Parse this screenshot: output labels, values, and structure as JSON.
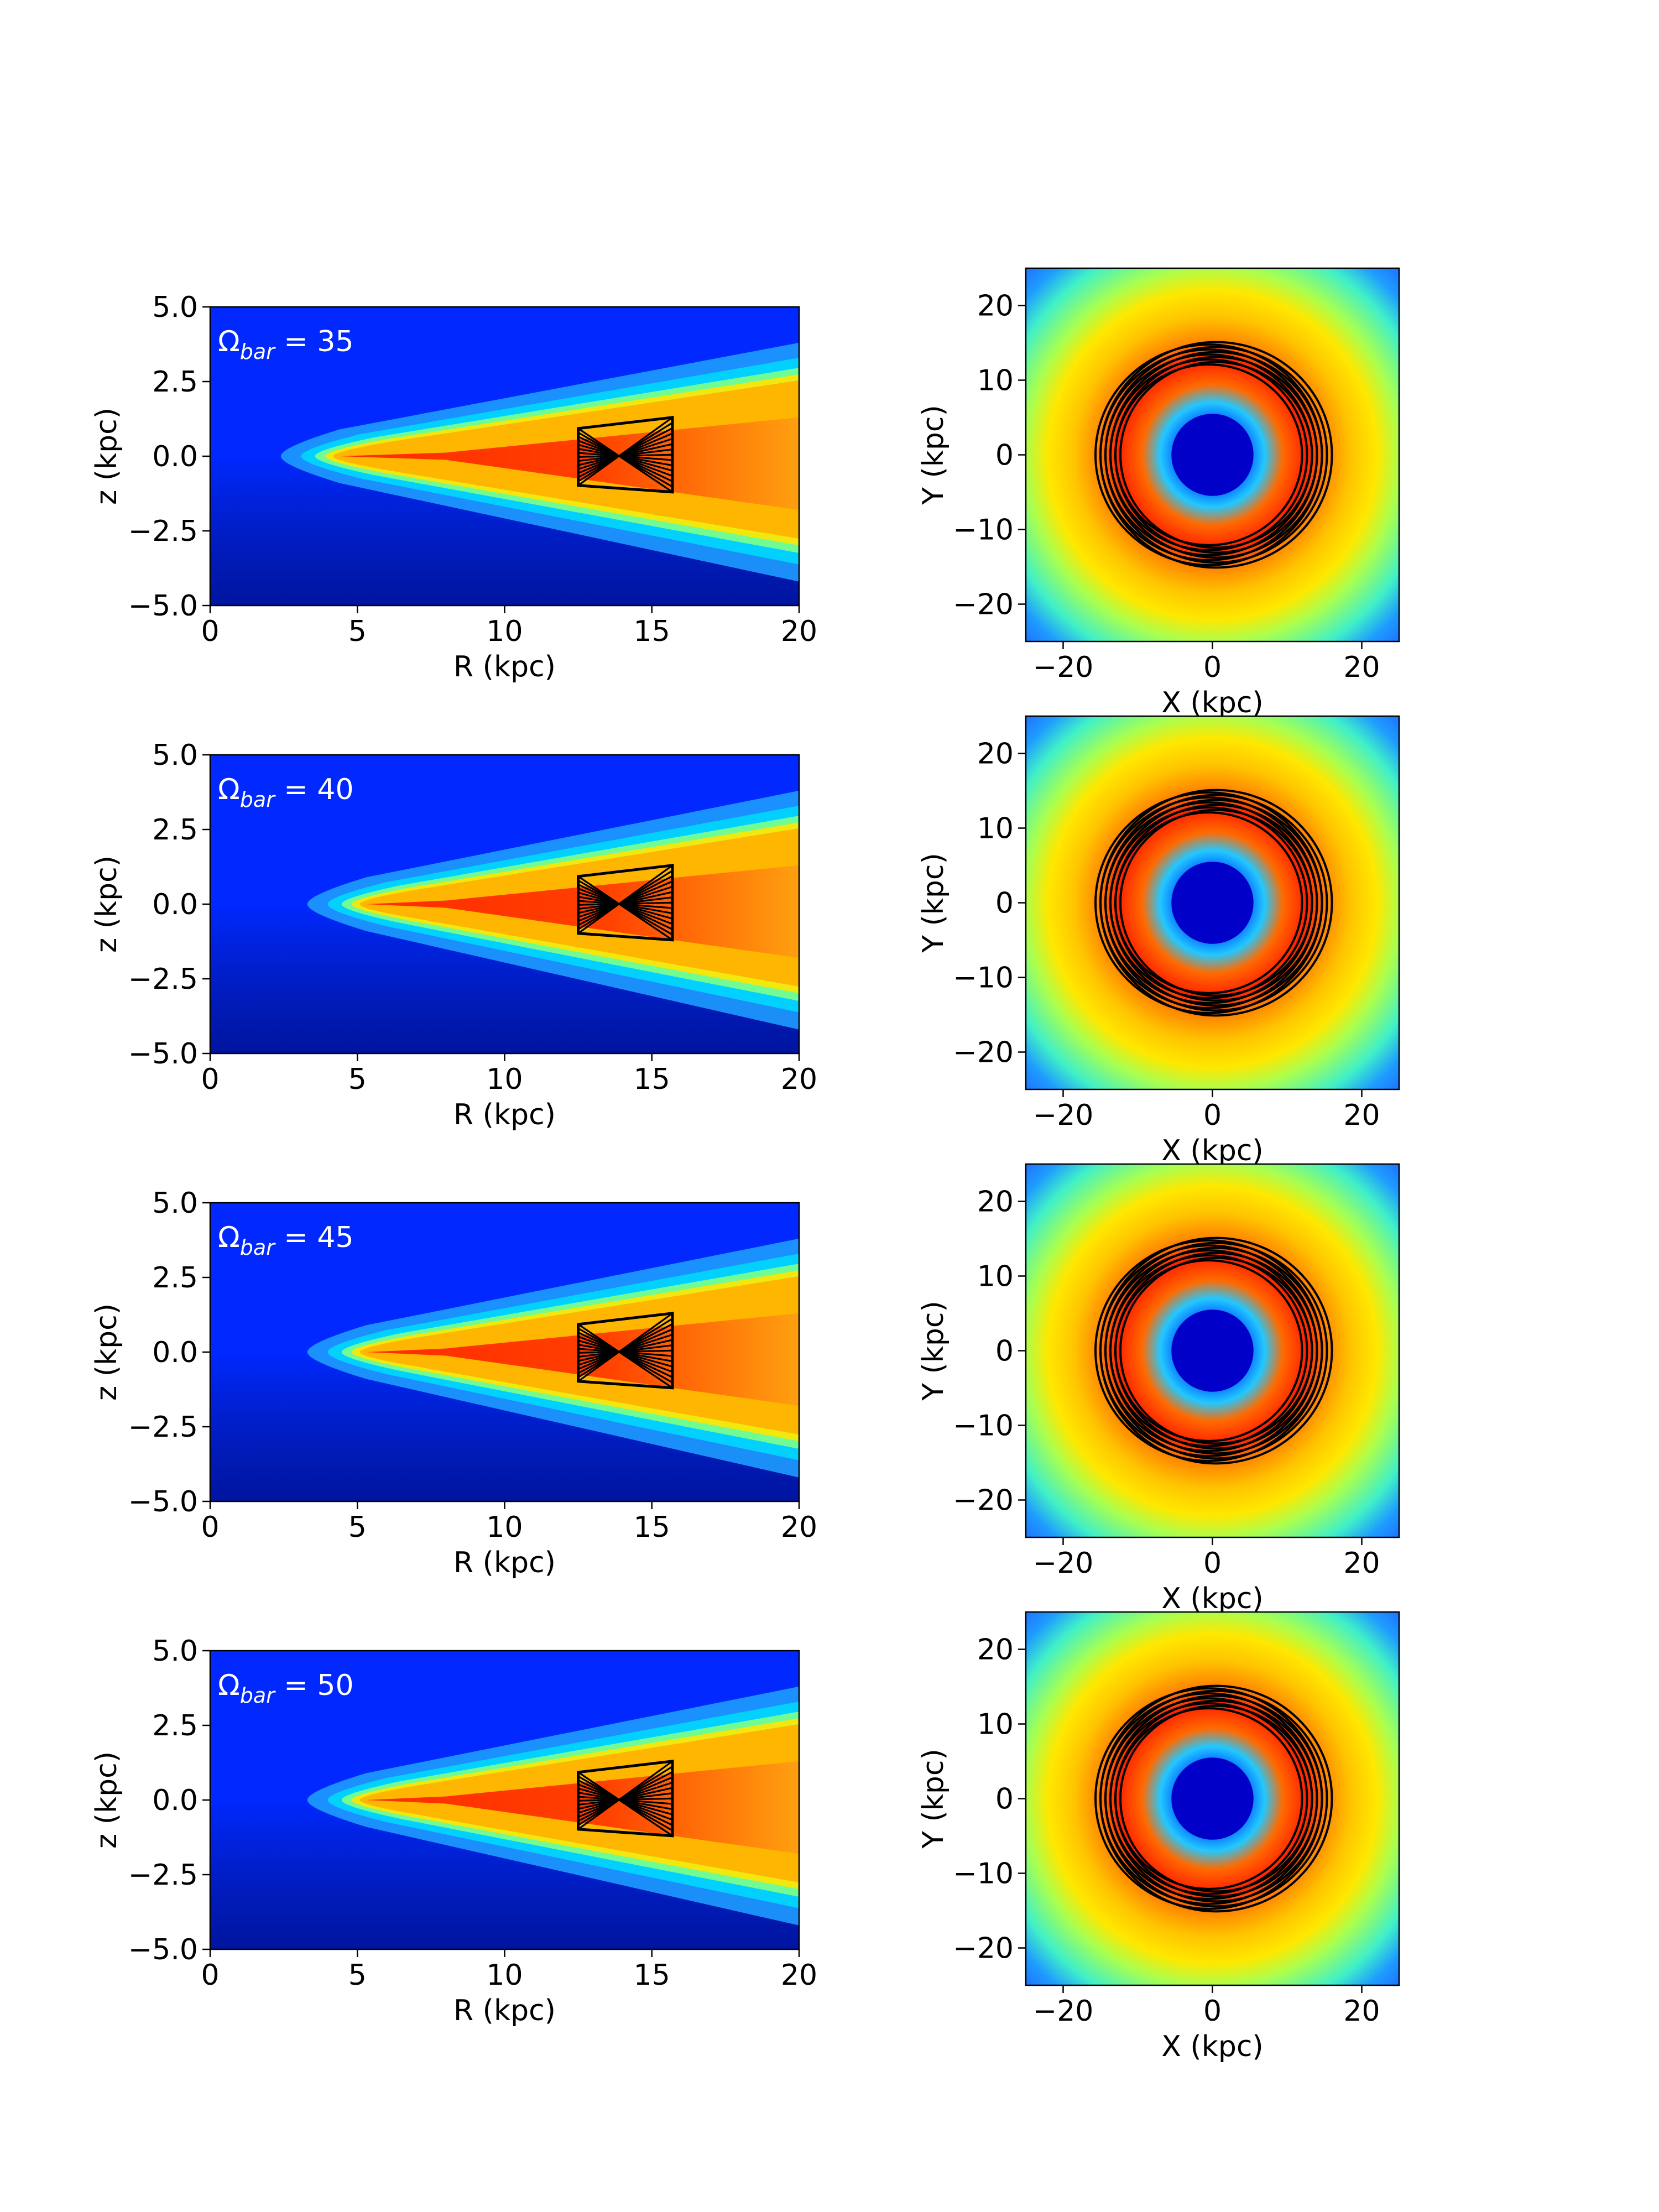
{
  "chart_data": [
    {
      "type": "heatmap",
      "panel": "left-1",
      "annotation": "35",
      "xlabel": "R (kpc)",
      "ylabel": "z (kpc)",
      "xlim": [
        0,
        20
      ],
      "ylim": [
        -5.0,
        5.0
      ],
      "xticks": [
        "0",
        "5",
        "10",
        "15",
        "20"
      ],
      "yticks": [
        "5.0",
        "2.5",
        "0.0",
        "−2.5",
        "−5.0"
      ],
      "orbit_box": {
        "r_range": [
          12.5,
          15.7
        ],
        "z_range": [
          -1.2,
          1.3
        ]
      }
    },
    {
      "type": "heatmap",
      "panel": "right-1",
      "xlabel": "X (kpc)",
      "ylabel": "Y (kpc)",
      "xlim": [
        -25,
        25
      ],
      "ylim": [
        -25,
        25
      ],
      "xticks": [
        "−20",
        "0",
        "20"
      ],
      "yticks": [
        "20",
        "10",
        "0",
        "−10",
        "−20"
      ],
      "orbit_ring": {
        "inner_radius": 12.5,
        "outer_radius": 15.5
      }
    },
    {
      "type": "heatmap",
      "panel": "left-2",
      "annotation": "40",
      "xlabel": "R (kpc)",
      "ylabel": "z (kpc)",
      "xlim": [
        0,
        20
      ],
      "ylim": [
        -5.0,
        5.0
      ],
      "xticks": [
        "0",
        "5",
        "10",
        "15",
        "20"
      ],
      "yticks": [
        "5.0",
        "2.5",
        "0.0",
        "−2.5",
        "−5.0"
      ],
      "orbit_box": {
        "r_range": [
          12.5,
          15.7
        ],
        "z_range": [
          -1.2,
          1.3
        ]
      }
    },
    {
      "type": "heatmap",
      "panel": "right-2",
      "xlabel": "X (kpc)",
      "ylabel": "Y (kpc)",
      "xlim": [
        -25,
        25
      ],
      "ylim": [
        -25,
        25
      ],
      "xticks": [
        "−20",
        "0",
        "20"
      ],
      "yticks": [
        "20",
        "10",
        "0",
        "−10",
        "−20"
      ],
      "orbit_ring": {
        "inner_radius": 12.5,
        "outer_radius": 15.5
      }
    },
    {
      "type": "heatmap",
      "panel": "left-3",
      "annotation": "45",
      "xlabel": "R (kpc)",
      "ylabel": "z (kpc)",
      "xlim": [
        0,
        20
      ],
      "ylim": [
        -5.0,
        5.0
      ],
      "xticks": [
        "0",
        "5",
        "10",
        "15",
        "20"
      ],
      "yticks": [
        "5.0",
        "2.5",
        "0.0",
        "−2.5",
        "−5.0"
      ],
      "orbit_box": {
        "r_range": [
          12.5,
          15.7
        ],
        "z_range": [
          -1.2,
          1.3
        ]
      }
    },
    {
      "type": "heatmap",
      "panel": "right-3",
      "xlabel": "X (kpc)",
      "ylabel": "Y (kpc)",
      "xlim": [
        -25,
        25
      ],
      "ylim": [
        -25,
        25
      ],
      "xticks": [
        "−20",
        "0",
        "20"
      ],
      "yticks": [
        "20",
        "10",
        "0",
        "−10",
        "−20"
      ],
      "orbit_ring": {
        "inner_radius": 12.5,
        "outer_radius": 15.5
      }
    },
    {
      "type": "heatmap",
      "panel": "left-4",
      "annotation": "50",
      "xlabel": "R (kpc)",
      "ylabel": "z (kpc)",
      "xlim": [
        0,
        20
      ],
      "ylim": [
        -5.0,
        5.0
      ],
      "xticks": [
        "0",
        "5",
        "10",
        "15",
        "20"
      ],
      "yticks": [
        "5.0",
        "2.5",
        "0.0",
        "−2.5",
        "−5.0"
      ],
      "orbit_box": {
        "r_range": [
          12.5,
          15.7
        ],
        "z_range": [
          -1.2,
          1.3
        ]
      }
    },
    {
      "type": "heatmap",
      "panel": "right-4",
      "xlabel": "X (kpc)",
      "ylabel": "Y (kpc)",
      "xlim": [
        -25,
        25
      ],
      "ylim": [
        -25,
        25
      ],
      "xticks": [
        "−20",
        "0",
        "20"
      ],
      "yticks": [
        "20",
        "10",
        "0",
        "−10",
        "−20"
      ],
      "orbit_ring": {
        "inner_radius": 12.5,
        "outer_radius": 15.5
      }
    }
  ]
}
